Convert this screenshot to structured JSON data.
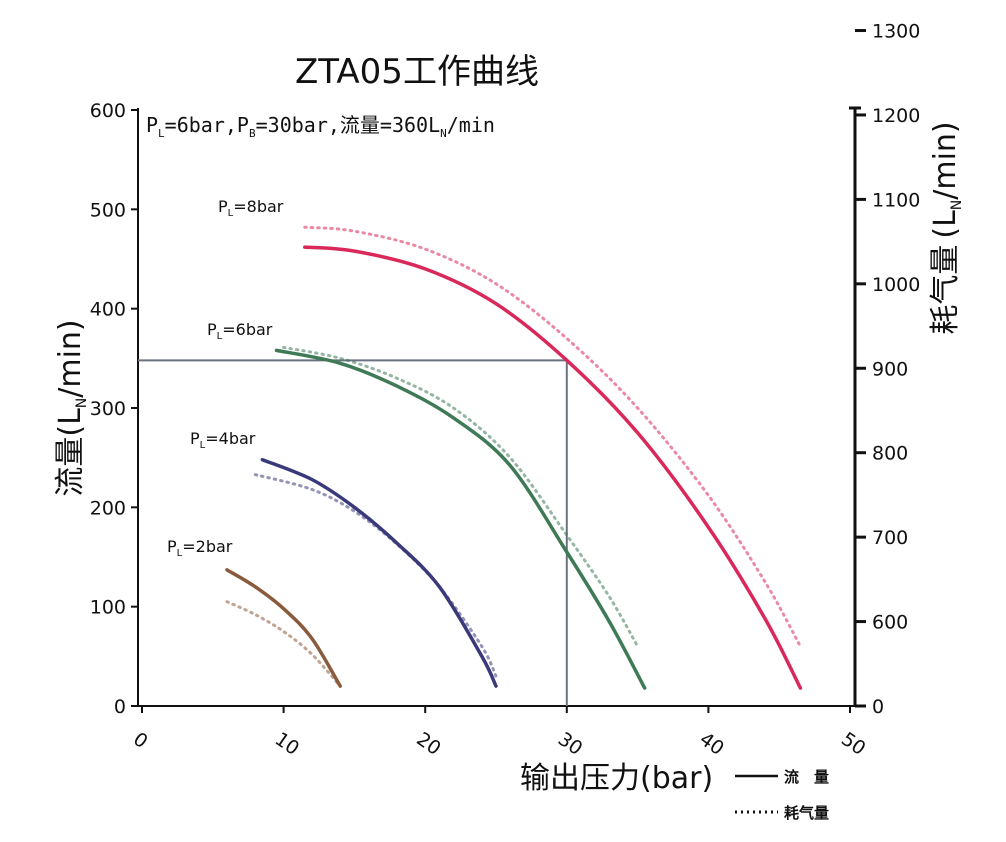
{
  "chart_data": {
    "type": "line",
    "title": "ZTA05工作曲线",
    "annotation": {
      "p_l": "6bar",
      "p_b": "30bar",
      "flow_label": "流量",
      "flow_value": "360",
      "flow_unit": "/min"
    },
    "xlabel": "输出压力(bar)",
    "ylabel_left": {
      "cn": "流量",
      "unit_main": "(L",
      "unit_tail": "/min)"
    },
    "ylabel_right": {
      "cn": "耗气量",
      "unit_main": "(L",
      "unit_tail": "/min)"
    },
    "x_ticks": [
      "0",
      "10",
      "20",
      "30",
      "40",
      "50"
    ],
    "y_left_ticks": [
      "0",
      "100",
      "200",
      "300",
      "400",
      "500",
      "600"
    ],
    "y_right_ticks": [
      "0",
      "600",
      "700",
      "800",
      "900",
      "1000",
      "1100",
      "1200",
      "1300"
    ],
    "xlim": [
      0,
      50
    ],
    "ylim_left": [
      0,
      600
    ],
    "y_right_scale": {
      "ticks": [
        0,
        600,
        700,
        800,
        900,
        1000,
        1100,
        1200,
        1300
      ],
      "left_equiv": [
        0,
        85,
        170,
        255,
        340,
        425,
        510,
        595,
        680
      ]
    },
    "grid": false,
    "reference_point": {
      "x": 30,
      "y": 348
    },
    "legend": [
      {
        "label": "流　量",
        "style": "solid"
      },
      {
        "label": "耗气量",
        "style": "dotted"
      }
    ],
    "series": [
      {
        "label": "2bar",
        "color": "#8a5a3c",
        "flow": [
          [
            6,
            137
          ],
          [
            8,
            120
          ],
          [
            10,
            98
          ],
          [
            12,
            68
          ],
          [
            14,
            20
          ]
        ],
        "consumption": [
          [
            6,
            105
          ],
          [
            8,
            92
          ],
          [
            10,
            75
          ],
          [
            12,
            52
          ],
          [
            14,
            20
          ]
        ]
      },
      {
        "label": "4bar",
        "color": "#3a3a7a",
        "flow": [
          [
            8.5,
            248
          ],
          [
            12,
            228
          ],
          [
            15,
            200
          ],
          [
            18,
            164
          ],
          [
            21,
            120
          ],
          [
            24,
            50
          ],
          [
            25,
            20
          ]
        ],
        "consumption": [
          [
            8,
            233
          ],
          [
            12,
            218
          ],
          [
            15,
            196
          ],
          [
            18,
            163
          ],
          [
            21,
            120
          ],
          [
            24,
            60
          ],
          [
            25,
            30
          ]
        ]
      },
      {
        "label": "6bar",
        "color": "#3e7a55",
        "flow": [
          [
            9.5,
            358
          ],
          [
            14,
            345
          ],
          [
            18,
            322
          ],
          [
            22,
            290
          ],
          [
            26,
            242
          ],
          [
            30,
            155
          ],
          [
            33,
            85
          ],
          [
            35.5,
            18
          ]
        ],
        "consumption": [
          [
            10,
            361
          ],
          [
            14,
            350
          ],
          [
            18,
            330
          ],
          [
            22,
            300
          ],
          [
            26,
            250
          ],
          [
            30,
            172
          ],
          [
            33,
            110
          ],
          [
            35,
            60
          ]
        ]
      },
      {
        "label": "8bar",
        "color": "#d9285a",
        "flow": [
          [
            11.5,
            462
          ],
          [
            15,
            458
          ],
          [
            20,
            440
          ],
          [
            25,
            405
          ],
          [
            30,
            348
          ],
          [
            35,
            275
          ],
          [
            40,
            180
          ],
          [
            44,
            88
          ],
          [
            46.5,
            18
          ]
        ],
        "consumption": [
          [
            11.5,
            482
          ],
          [
            15,
            478
          ],
          [
            20,
            460
          ],
          [
            25,
            425
          ],
          [
            30,
            370
          ],
          [
            35,
            300
          ],
          [
            40,
            212
          ],
          [
            44,
            125
          ],
          [
            46.5,
            60
          ]
        ]
      }
    ]
  }
}
